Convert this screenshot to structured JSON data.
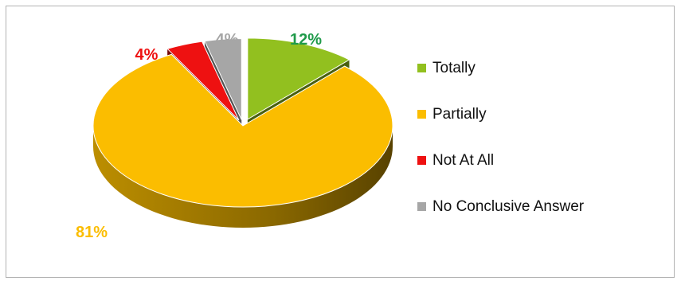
{
  "chart_data": {
    "type": "pie",
    "title": "",
    "categories": [
      "Totally",
      "Partially",
      "Not At All",
      "No Conclusive Answer"
    ],
    "values": [
      12,
      81,
      4,
      4
    ],
    "labels": [
      "12%",
      "81%",
      "4%",
      "4%"
    ],
    "colors": [
      "#92c01f",
      "#fbbd00",
      "#ee1111",
      "#a6a6a6"
    ],
    "label_colors": [
      "#1f9a4a",
      "#fbbd00",
      "#ee1111",
      "#a6a6a6"
    ],
    "style": "3d-exploded",
    "legend": "right"
  }
}
